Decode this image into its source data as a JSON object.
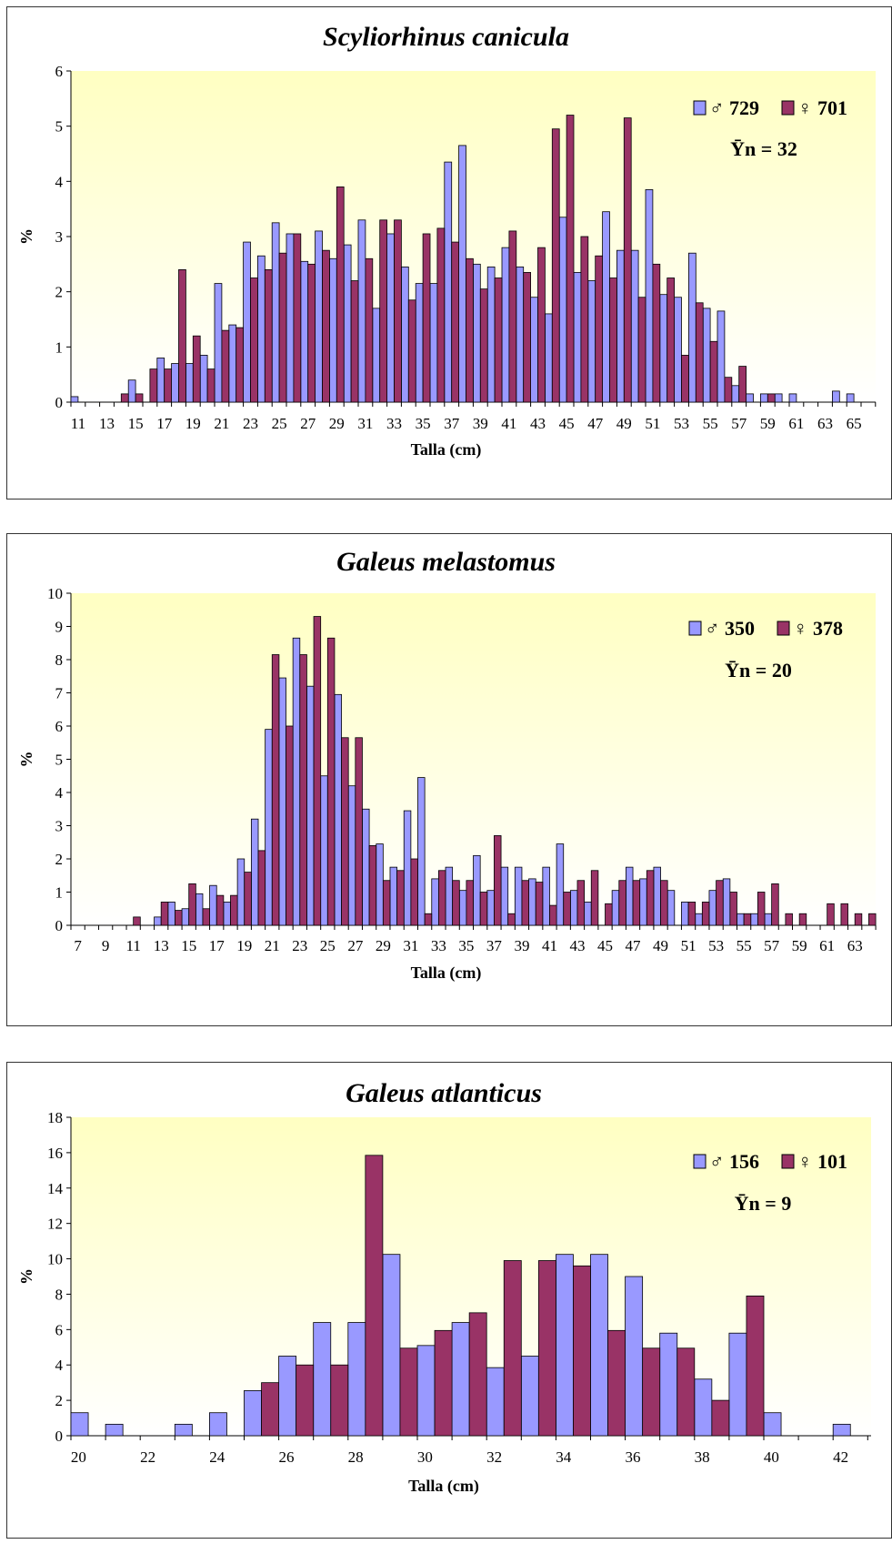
{
  "colors": {
    "male": "#9999FF",
    "female": "#993366",
    "plot_bg_top": "#FFFFC2",
    "plot_bg_bottom": "#FFFFFF"
  },
  "chart_data": [
    {
      "type": "bar",
      "title": "Scyliorhinus canicula",
      "xlabel": "Talla (cm)",
      "ylabel": "%",
      "ylim": [
        0,
        6
      ],
      "yticks": [
        0,
        1,
        2,
        3,
        4,
        5,
        6
      ],
      "categories": [
        11,
        12,
        13,
        14,
        15,
        16,
        17,
        18,
        19,
        20,
        21,
        22,
        23,
        24,
        25,
        26,
        27,
        28,
        29,
        30,
        31,
        32,
        33,
        34,
        35,
        36,
        37,
        38,
        39,
        40,
        41,
        42,
        43,
        44,
        45,
        46,
        47,
        48,
        49,
        50,
        51,
        52,
        53,
        54,
        55,
        56,
        57,
        58,
        59,
        60,
        61,
        62,
        63,
        64,
        65,
        66
      ],
      "tick_labels": [
        11,
        13,
        15,
        17,
        19,
        21,
        23,
        25,
        27,
        29,
        31,
        33,
        35,
        37,
        39,
        41,
        43,
        45,
        47,
        49,
        51,
        53,
        55,
        57,
        59,
        61,
        63,
        65
      ],
      "legend": {
        "male_label": "♂ 729",
        "female_label": "♀ 701",
        "mean_label": "Ȳn = 32",
        "position": "top-right"
      },
      "series": [
        {
          "name": "♂ 729",
          "values": [
            0.1,
            0,
            0,
            0,
            0.4,
            0,
            0.8,
            0.7,
            0.7,
            0.85,
            2.15,
            1.4,
            2.9,
            2.65,
            3.25,
            3.05,
            2.55,
            3.1,
            2.6,
            2.85,
            3.3,
            1.7,
            3.05,
            2.45,
            2.15,
            2.15,
            4.35,
            4.65,
            2.5,
            2.45,
            2.8,
            2.45,
            1.9,
            1.6,
            3.35,
            2.35,
            2.2,
            3.45,
            2.75,
            2.75,
            3.85,
            1.95,
            1.9,
            2.7,
            1.7,
            1.65,
            0.3,
            0.15,
            0.15,
            0.15,
            0.15,
            0,
            0,
            0.2,
            0.15,
            0
          ]
        },
        {
          "name": "♀ 701",
          "values": [
            0,
            0,
            0,
            0.15,
            0.15,
            0.6,
            0.6,
            2.4,
            1.2,
            0.6,
            1.3,
            1.35,
            2.25,
            2.4,
            2.7,
            3.05,
            2.5,
            2.75,
            3.9,
            2.2,
            2.6,
            3.3,
            3.3,
            1.85,
            3.05,
            3.15,
            2.9,
            2.6,
            2.05,
            2.25,
            3.1,
            2.35,
            2.8,
            4.95,
            5.2,
            3.0,
            2.65,
            2.25,
            5.15,
            1.9,
            2.5,
            2.25,
            0.85,
            1.8,
            1.1,
            0.45,
            0.65,
            0,
            0.15,
            0,
            0,
            0,
            0,
            0,
            0,
            0
          ]
        }
      ]
    },
    {
      "type": "bar",
      "title": "Galeus melastomus",
      "xlabel": "Talla (cm)",
      "ylabel": "%",
      "ylim": [
        0,
        10
      ],
      "yticks": [
        0,
        1,
        2,
        3,
        4,
        5,
        6,
        7,
        8,
        9,
        10
      ],
      "categories": [
        7,
        8,
        9,
        10,
        11,
        12,
        13,
        14,
        15,
        16,
        17,
        18,
        19,
        20,
        21,
        22,
        23,
        24,
        25,
        26,
        27,
        28,
        29,
        30,
        31,
        32,
        33,
        34,
        35,
        36,
        37,
        38,
        39,
        40,
        41,
        42,
        43,
        44,
        45,
        46,
        47,
        48,
        49,
        50,
        51,
        52,
        53,
        54,
        55,
        56,
        57,
        58,
        59,
        60,
        61,
        62,
        63,
        64
      ],
      "tick_labels": [
        7,
        9,
        11,
        13,
        15,
        17,
        19,
        21,
        23,
        25,
        27,
        29,
        31,
        33,
        35,
        37,
        39,
        41,
        43,
        45,
        47,
        49,
        51,
        53,
        55,
        57,
        59,
        61,
        63
      ],
      "legend": {
        "male_label": "♂ 350",
        "female_label": "♀ 378",
        "mean_label": "Ȳn = 20",
        "position": "top-right"
      },
      "series": [
        {
          "name": "♂ 350",
          "values": [
            0,
            0,
            0,
            0,
            0,
            0,
            0.25,
            0.7,
            0.5,
            0.95,
            1.2,
            0.7,
            2.0,
            3.2,
            5.9,
            7.45,
            8.65,
            7.2,
            4.5,
            6.95,
            4.2,
            3.5,
            2.45,
            1.75,
            3.45,
            4.45,
            1.4,
            1.75,
            1.05,
            2.1,
            1.05,
            1.75,
            1.75,
            1.4,
            1.75,
            2.45,
            1.05,
            0.7,
            0,
            1.05,
            1.75,
            1.4,
            1.75,
            1.05,
            0.7,
            0.35,
            1.05,
            1.4,
            0.35,
            0.35,
            0.35,
            0,
            0,
            0,
            0,
            0,
            0,
            0
          ]
        },
        {
          "name": "♀ 378",
          "values": [
            0,
            0,
            0,
            0,
            0.25,
            0,
            0.7,
            0.45,
            1.25,
            0.5,
            0.9,
            0.9,
            1.6,
            2.25,
            8.15,
            6.0,
            8.15,
            9.3,
            8.65,
            5.65,
            5.65,
            2.4,
            1.35,
            1.65,
            2.0,
            0.35,
            1.65,
            1.35,
            1.35,
            1.0,
            2.7,
            0.35,
            1.35,
            1.3,
            0.6,
            1.0,
            1.35,
            1.65,
            0.65,
            1.35,
            1.35,
            1.65,
            1.35,
            0,
            0.7,
            0.7,
            1.35,
            1.0,
            0.35,
            1.0,
            1.25,
            0.35,
            0.35,
            0,
            0.65,
            0.65,
            0.35,
            0.35
          ]
        }
      ]
    },
    {
      "type": "bar",
      "title": "Galeus atlanticus",
      "xlabel": "Talla (cm)",
      "ylabel": "%",
      "ylim": [
        0,
        18
      ],
      "yticks": [
        0,
        2,
        4,
        6,
        8,
        10,
        12,
        14,
        16,
        18
      ],
      "categories": [
        20,
        21,
        22,
        23,
        24,
        25,
        26,
        27,
        28,
        29,
        30,
        31,
        32,
        33,
        34,
        35,
        36,
        37,
        38,
        39,
        40,
        41,
        42
      ],
      "tick_labels": [
        20,
        22,
        24,
        26,
        28,
        30,
        32,
        34,
        36,
        38,
        40,
        42
      ],
      "legend": {
        "male_label": "♂ 156",
        "female_label": "♀ 101",
        "mean_label": "Ȳn = 9",
        "position": "top-right"
      },
      "series": [
        {
          "name": "♂ 156",
          "values": [
            1.3,
            0.65,
            0,
            0.65,
            1.3,
            2.55,
            4.5,
            6.4,
            6.4,
            10.25,
            5.1,
            6.4,
            3.85,
            4.5,
            10.25,
            10.25,
            9.0,
            5.8,
            3.2,
            5.8,
            1.3,
            0,
            0.65
          ]
        },
        {
          "name": "♀ 101",
          "values": [
            0,
            0,
            0,
            0,
            0,
            3.0,
            4.0,
            4.0,
            15.85,
            4.95,
            5.95,
            6.95,
            9.9,
            9.9,
            9.6,
            5.95,
            4.95,
            4.95,
            2.0,
            7.9,
            0,
            0,
            0
          ]
        }
      ]
    }
  ]
}
